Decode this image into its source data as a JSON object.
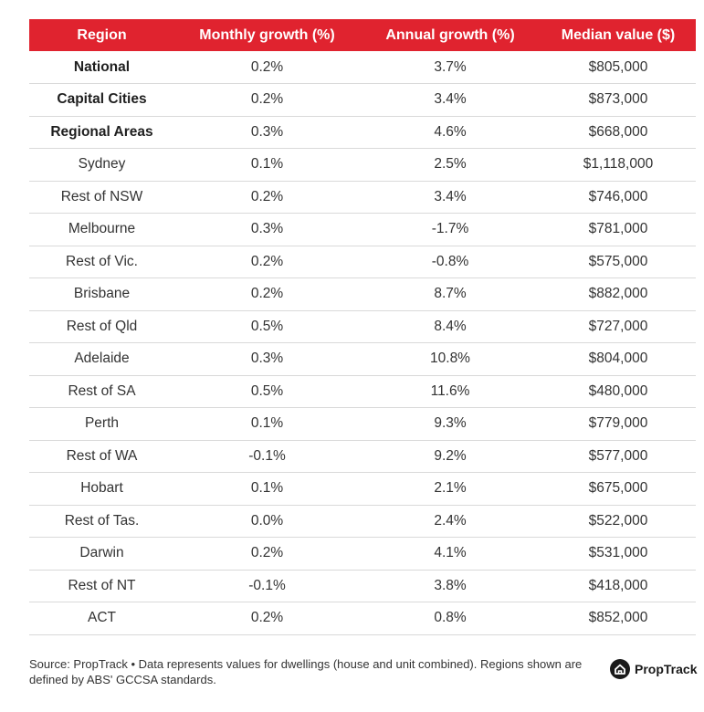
{
  "chart_data": {
    "type": "table",
    "columns": [
      "Region",
      "Monthly growth (%)",
      "Annual growth (%)",
      "Median value ($)"
    ],
    "rows": [
      {
        "region": "National",
        "monthly": "0.2%",
        "annual": "3.7%",
        "median": "$805,000",
        "bold": true
      },
      {
        "region": "Capital Cities",
        "monthly": "0.2%",
        "annual": "3.4%",
        "median": "$873,000",
        "bold": true
      },
      {
        "region": "Regional Areas",
        "monthly": "0.3%",
        "annual": "4.6%",
        "median": "$668,000",
        "bold": true
      },
      {
        "region": "Sydney",
        "monthly": "0.1%",
        "annual": "2.5%",
        "median": "$1,118,000",
        "bold": false
      },
      {
        "region": "Rest of NSW",
        "monthly": "0.2%",
        "annual": "3.4%",
        "median": "$746,000",
        "bold": false
      },
      {
        "region": "Melbourne",
        "monthly": "0.3%",
        "annual": "-1.7%",
        "median": "$781,000",
        "bold": false
      },
      {
        "region": "Rest of Vic.",
        "monthly": "0.2%",
        "annual": "-0.8%",
        "median": "$575,000",
        "bold": false
      },
      {
        "region": "Brisbane",
        "monthly": "0.2%",
        "annual": "8.7%",
        "median": "$882,000",
        "bold": false
      },
      {
        "region": "Rest of Qld",
        "monthly": "0.5%",
        "annual": "8.4%",
        "median": "$727,000",
        "bold": false
      },
      {
        "region": "Adelaide",
        "monthly": "0.3%",
        "annual": "10.8%",
        "median": "$804,000",
        "bold": false
      },
      {
        "region": "Rest of SA",
        "monthly": "0.5%",
        "annual": "11.6%",
        "median": "$480,000",
        "bold": false
      },
      {
        "region": "Perth",
        "monthly": "0.1%",
        "annual": "9.3%",
        "median": "$779,000",
        "bold": false
      },
      {
        "region": "Rest of WA",
        "monthly": "-0.1%",
        "annual": "9.2%",
        "median": "$577,000",
        "bold": false
      },
      {
        "region": "Hobart",
        "monthly": "0.1%",
        "annual": "2.1%",
        "median": "$675,000",
        "bold": false
      },
      {
        "region": "Rest of Tas.",
        "monthly": "0.0%",
        "annual": "2.4%",
        "median": "$522,000",
        "bold": false
      },
      {
        "region": "Darwin",
        "monthly": "0.2%",
        "annual": "4.1%",
        "median": "$531,000",
        "bold": false
      },
      {
        "region": "Rest of NT",
        "monthly": "-0.1%",
        "annual": "3.8%",
        "median": "$418,000",
        "bold": false
      },
      {
        "region": "ACT",
        "monthly": "0.2%",
        "annual": "0.8%",
        "median": "$852,000",
        "bold": false
      }
    ]
  },
  "footer": {
    "source": "Source: PropTrack • Data represents values for dwellings (house and unit combined). Regions shown are defined by ABS' GCCSA standards."
  },
  "logo": {
    "text": "PropTrack",
    "icon": "house-logo-icon"
  },
  "colors": {
    "header_bg": "#e0232f",
    "header_text": "#ffffff",
    "divider": "#d9d9d9"
  }
}
